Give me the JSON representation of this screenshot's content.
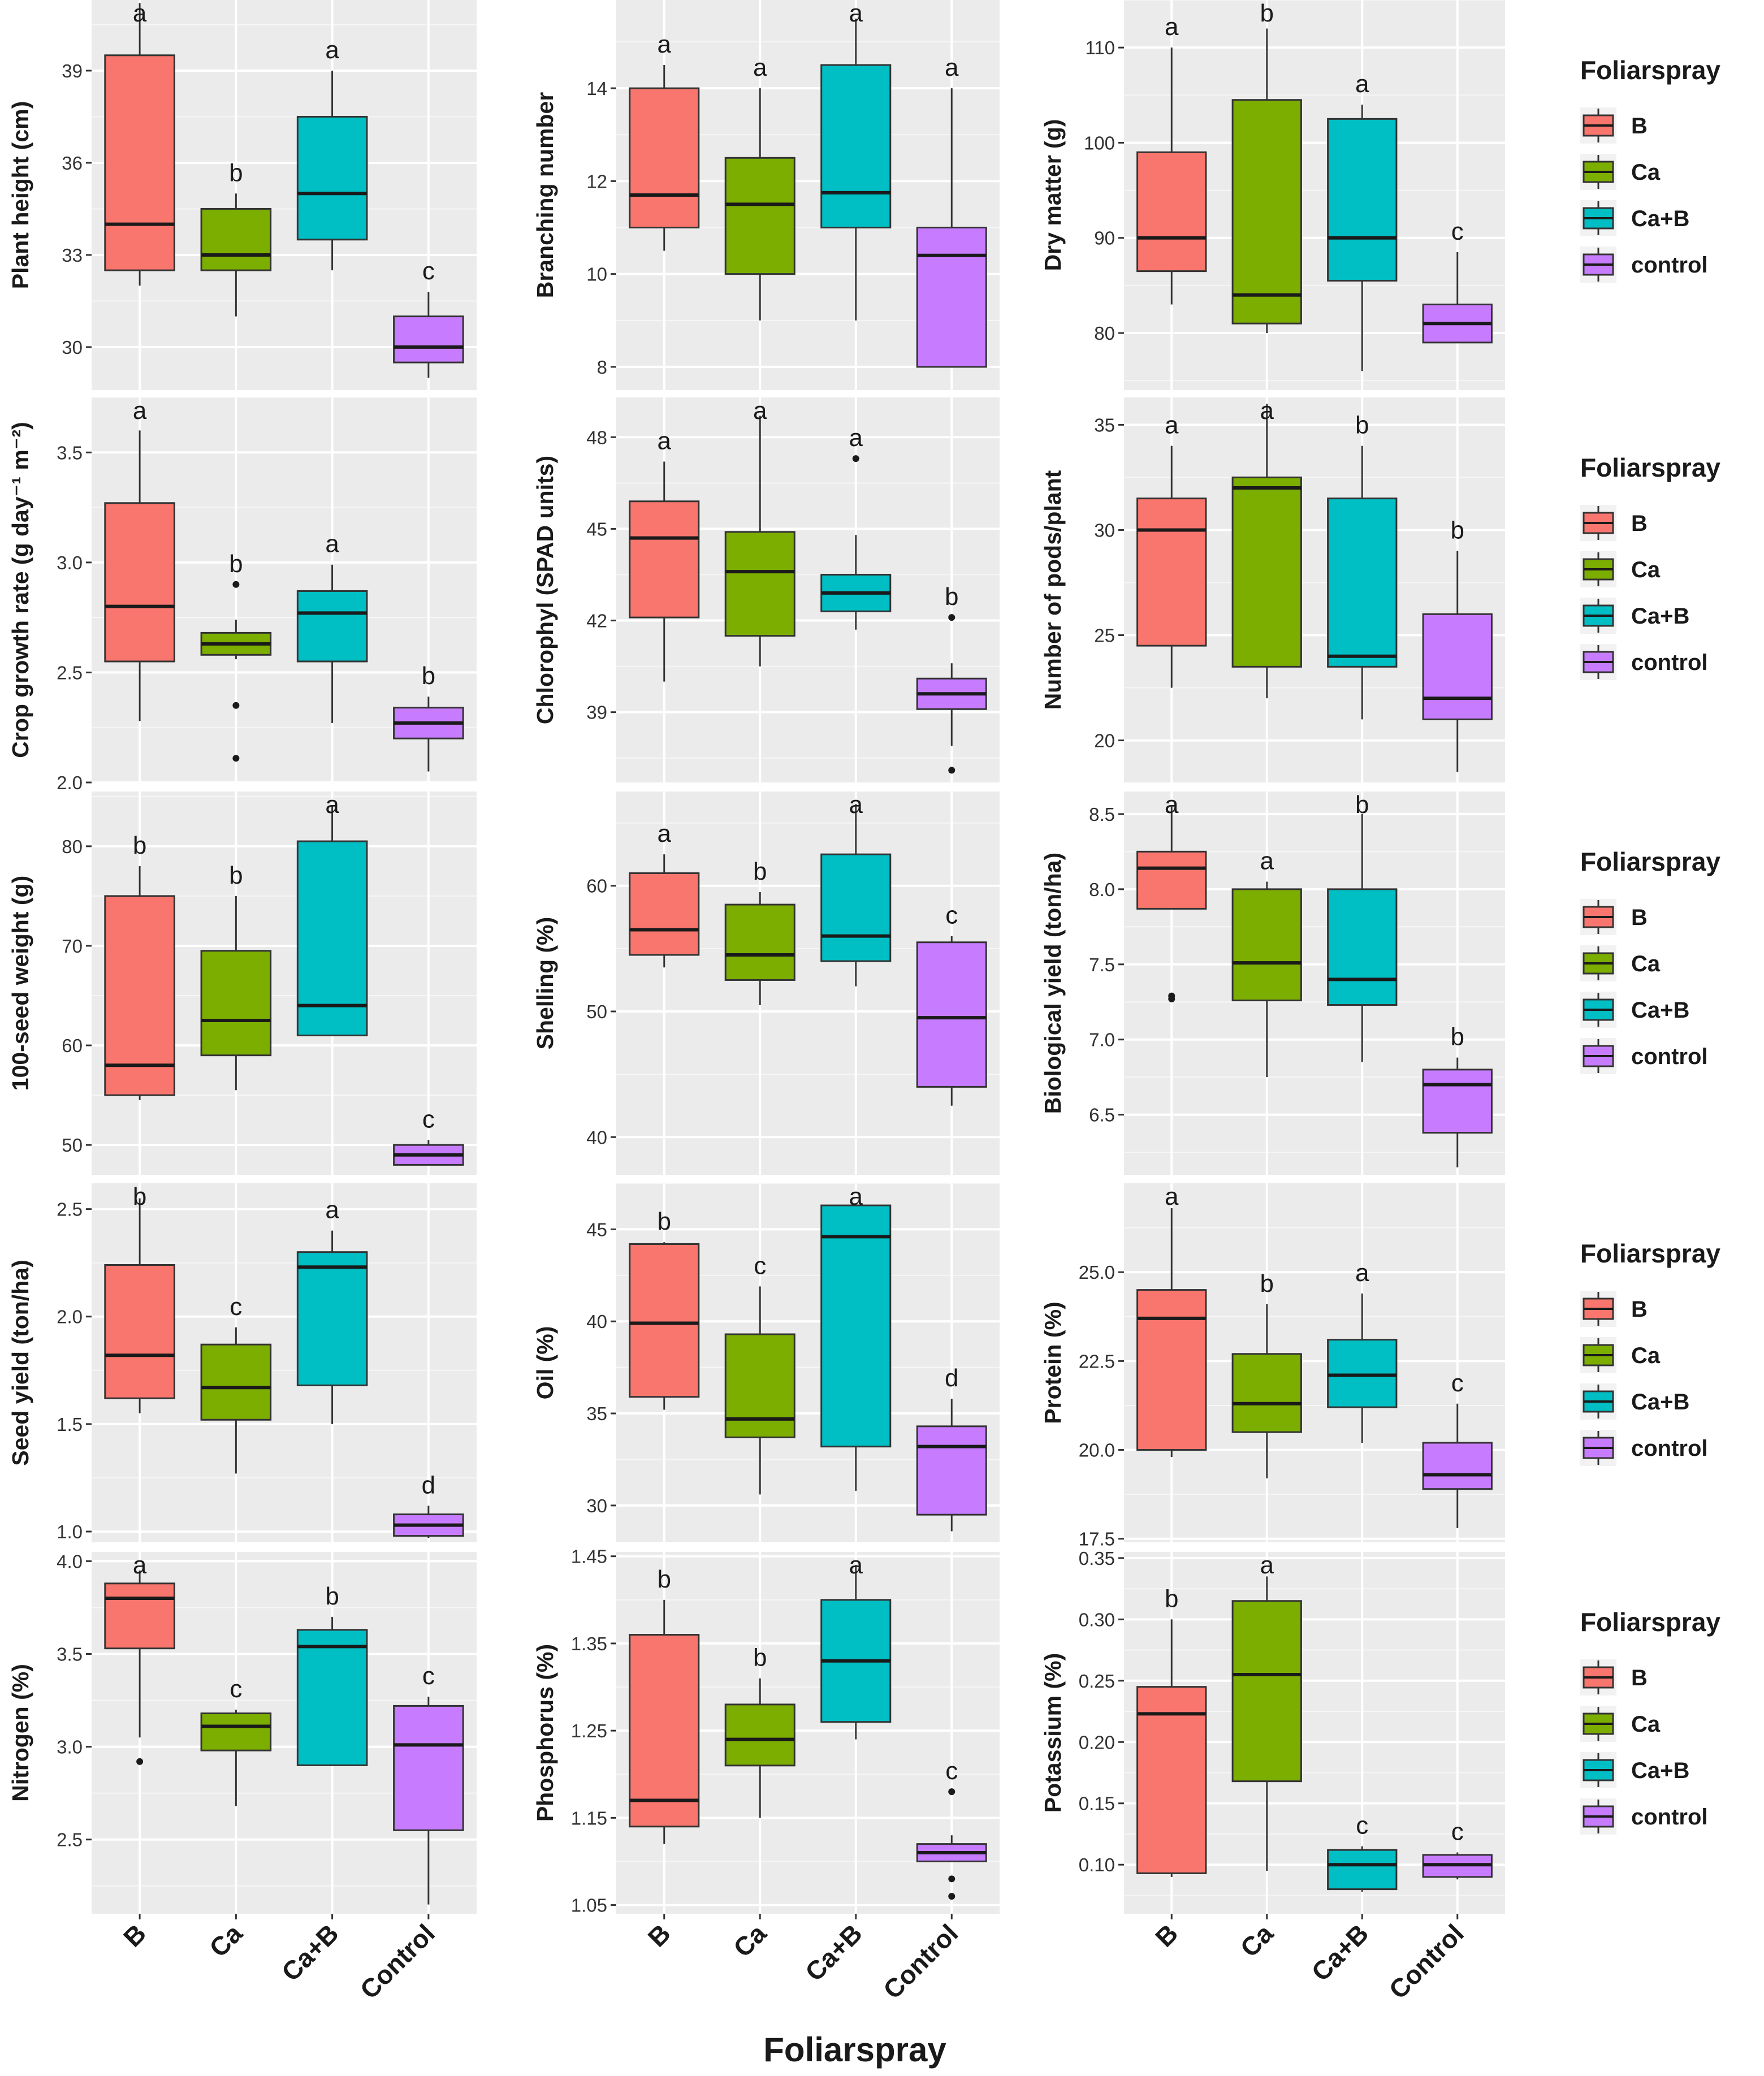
{
  "figure": {
    "x_title": "Foliarspray",
    "x_categories": [
      "B",
      "Ca",
      "Ca+B",
      "Control"
    ],
    "legend": {
      "title": "Foliarspray",
      "items": [
        {
          "label": "B",
          "color": "#F8766D"
        },
        {
          "label": "Ca",
          "color": "#7CAE00"
        },
        {
          "label": "Ca+B",
          "color": "#00BFC4"
        },
        {
          "label": "control",
          "color": "#C77CFF"
        }
      ]
    }
  },
  "chart_data": [
    {
      "type": "boxplot",
      "ylabel": "Plant height (cm)",
      "ylim": [
        28.6,
        41.3
      ],
      "yticks": [
        30,
        33,
        36,
        39
      ],
      "yticklabels": [
        "30",
        "33",
        "36",
        "39"
      ],
      "groups": [
        {
          "category": "B",
          "whisker_low": 32,
          "q1": 32.5,
          "median": 34,
          "q3": 39.5,
          "whisker_high": 41.2,
          "letter": "a",
          "outliers": []
        },
        {
          "category": "Ca",
          "whisker_low": 31,
          "q1": 32.5,
          "median": 33,
          "q3": 34.5,
          "whisker_high": 35,
          "letter": "b",
          "outliers": []
        },
        {
          "category": "Ca+B",
          "whisker_low": 32.5,
          "q1": 33.5,
          "median": 35,
          "q3": 37.5,
          "whisker_high": 39,
          "letter": "a",
          "outliers": []
        },
        {
          "category": "Control",
          "whisker_low": 29,
          "q1": 29.5,
          "median": 30,
          "q3": 31,
          "whisker_high": 31.8,
          "letter": "c",
          "outliers": []
        }
      ]
    },
    {
      "type": "boxplot",
      "ylabel": "Branching number",
      "ylim": [
        7.5,
        15.9
      ],
      "yticks": [
        8,
        10,
        12,
        14
      ],
      "yticklabels": [
        "8",
        "10",
        "12",
        "14"
      ],
      "groups": [
        {
          "category": "B",
          "whisker_low": 10.5,
          "q1": 11,
          "median": 11.7,
          "q3": 14,
          "whisker_high": 14.5,
          "letter": "a",
          "outliers": []
        },
        {
          "category": "Ca",
          "whisker_low": 9,
          "q1": 10,
          "median": 11.5,
          "q3": 12.5,
          "whisker_high": 14,
          "letter": "a",
          "outliers": []
        },
        {
          "category": "Ca+B",
          "whisker_low": 9,
          "q1": 11,
          "median": 11.75,
          "q3": 14.5,
          "whisker_high": 15.5,
          "letter": "a",
          "outliers": []
        },
        {
          "category": "Control",
          "whisker_low": 8,
          "q1": 8,
          "median": 10.4,
          "q3": 11,
          "whisker_high": 14,
          "letter": "a",
          "outliers": []
        }
      ]
    },
    {
      "type": "boxplot",
      "ylabel": "Dry matter (g)",
      "ylim": [
        74,
        115
      ],
      "yticks": [
        80,
        90,
        100,
        110
      ],
      "yticklabels": [
        "80",
        "90",
        "100",
        "110"
      ],
      "groups": [
        {
          "category": "B",
          "whisker_low": 83,
          "q1": 86.5,
          "median": 90,
          "q3": 99,
          "whisker_high": 110,
          "letter": "a",
          "outliers": []
        },
        {
          "category": "Ca",
          "whisker_low": 80,
          "q1": 81,
          "median": 84,
          "q3": 104.5,
          "whisker_high": 112,
          "letter": "b",
          "outliers": []
        },
        {
          "category": "Ca+B",
          "whisker_low": 76,
          "q1": 85.5,
          "median": 90,
          "q3": 102.5,
          "whisker_high": 104,
          "letter": "a",
          "outliers": []
        },
        {
          "category": "Control",
          "whisker_low": 79,
          "q1": 79,
          "median": 81,
          "q3": 83,
          "whisker_high": 88.5,
          "letter": "c",
          "outliers": []
        }
      ]
    },
    {
      "type": "boxplot",
      "ylabel": "Crop growth rate (g day⁻¹ m⁻²)",
      "ylim": [
        2.0,
        3.75
      ],
      "yticks": [
        2.0,
        2.5,
        3.0,
        3.5
      ],
      "yticklabels": [
        "2.0",
        "2.5",
        "3.0",
        "3.5"
      ],
      "groups": [
        {
          "category": "B",
          "whisker_low": 2.28,
          "q1": 2.55,
          "median": 2.8,
          "q3": 3.27,
          "whisker_high": 3.6,
          "letter": "a",
          "outliers": []
        },
        {
          "category": "Ca",
          "whisker_low": 2.56,
          "q1": 2.58,
          "median": 2.63,
          "q3": 2.68,
          "whisker_high": 2.74,
          "letter": "b",
          "outliers": [
            2.9,
            2.35,
            2.11
          ]
        },
        {
          "category": "Ca+B",
          "whisker_low": 2.27,
          "q1": 2.55,
          "median": 2.77,
          "q3": 2.87,
          "whisker_high": 2.99,
          "letter": "a",
          "outliers": []
        },
        {
          "category": "Control",
          "whisker_low": 2.05,
          "q1": 2.2,
          "median": 2.27,
          "q3": 2.34,
          "whisker_high": 2.39,
          "letter": "b",
          "outliers": []
        }
      ]
    },
    {
      "type": "boxplot",
      "ylabel": "Chlorophyl (SPAD units)",
      "ylim": [
        36.7,
        49.3
      ],
      "yticks": [
        39,
        42,
        45,
        48
      ],
      "yticklabels": [
        "39",
        "42",
        "45",
        "48"
      ],
      "groups": [
        {
          "category": "B",
          "whisker_low": 40,
          "q1": 42.1,
          "median": 44.7,
          "q3": 45.9,
          "whisker_high": 47.2,
          "letter": "a",
          "outliers": []
        },
        {
          "category": "Ca",
          "whisker_low": 40.5,
          "q1": 41.5,
          "median": 43.6,
          "q3": 44.9,
          "whisker_high": 48.7,
          "letter": "a",
          "outliers": []
        },
        {
          "category": "Ca+B",
          "whisker_low": 41.7,
          "q1": 42.3,
          "median": 42.9,
          "q3": 43.5,
          "whisker_high": 44.8,
          "letter": "a",
          "outliers": [
            47.3
          ]
        },
        {
          "category": "Control",
          "whisker_low": 37.9,
          "q1": 39.1,
          "median": 39.6,
          "q3": 40.1,
          "whisker_high": 40.6,
          "letter": "b",
          "outliers": [
            37.1,
            42.1
          ]
        }
      ]
    },
    {
      "type": "boxplot",
      "ylabel": "Number of pods/plant",
      "ylim": [
        18,
        36.3
      ],
      "yticks": [
        20,
        25,
        30,
        35
      ],
      "yticklabels": [
        "20",
        "25",
        "30",
        "35"
      ],
      "groups": [
        {
          "category": "B",
          "whisker_low": 22.5,
          "q1": 24.5,
          "median": 30,
          "q3": 31.5,
          "whisker_high": 34,
          "letter": "a",
          "outliers": []
        },
        {
          "category": "Ca",
          "whisker_low": 22,
          "q1": 23.5,
          "median": 32,
          "q3": 32.5,
          "whisker_high": 36,
          "letter": "a",
          "outliers": []
        },
        {
          "category": "Ca+B",
          "whisker_low": 21,
          "q1": 23.5,
          "median": 24,
          "q3": 31.5,
          "whisker_high": 34,
          "letter": "b",
          "outliers": []
        },
        {
          "category": "Control",
          "whisker_low": 18.5,
          "q1": 21,
          "median": 22,
          "q3": 26,
          "whisker_high": 29,
          "letter": "b",
          "outliers": []
        }
      ]
    },
    {
      "type": "boxplot",
      "ylabel": "100-seed weight (g)",
      "ylim": [
        47,
        85.5
      ],
      "yticks": [
        50,
        60,
        70,
        80
      ],
      "yticklabels": [
        "50",
        "60",
        "70",
        "80"
      ],
      "groups": [
        {
          "category": "B",
          "whisker_low": 54.5,
          "q1": 55,
          "median": 58,
          "q3": 75,
          "whisker_high": 78,
          "letter": "b",
          "outliers": []
        },
        {
          "category": "Ca",
          "whisker_low": 55.5,
          "q1": 59,
          "median": 62.5,
          "q3": 69.5,
          "whisker_high": 75,
          "letter": "b",
          "outliers": []
        },
        {
          "category": "Ca+B",
          "whisker_low": 61,
          "q1": 61,
          "median": 64,
          "q3": 80.5,
          "whisker_high": 84,
          "letter": "a",
          "outliers": []
        },
        {
          "category": "Control",
          "whisker_low": 48,
          "q1": 48,
          "median": 49,
          "q3": 50,
          "whisker_high": 50.5,
          "letter": "c",
          "outliers": []
        }
      ]
    },
    {
      "type": "boxplot",
      "ylabel": "Shelling (%)",
      "ylim": [
        37,
        67.5
      ],
      "yticks": [
        40,
        50,
        60
      ],
      "yticklabels": [
        "40",
        "50",
        "60"
      ],
      "groups": [
        {
          "category": "B",
          "whisker_low": 53.5,
          "q1": 54.5,
          "median": 56.5,
          "q3": 61,
          "whisker_high": 62.5,
          "letter": "a",
          "outliers": []
        },
        {
          "category": "Ca",
          "whisker_low": 50.5,
          "q1": 52.5,
          "median": 54.5,
          "q3": 58.5,
          "whisker_high": 59.5,
          "letter": "b",
          "outliers": []
        },
        {
          "category": "Ca+B",
          "whisker_low": 52,
          "q1": 54,
          "median": 56,
          "q3": 62.5,
          "whisker_high": 66.5,
          "letter": "a",
          "outliers": []
        },
        {
          "category": "Control",
          "whisker_low": 42.5,
          "q1": 44,
          "median": 49.5,
          "q3": 55.5,
          "whisker_high": 56,
          "letter": "c",
          "outliers": []
        }
      ]
    },
    {
      "type": "boxplot",
      "ylabel": "Biological yield (ton/ha)",
      "ylim": [
        6.1,
        8.65
      ],
      "yticks": [
        6.5,
        7.0,
        7.5,
        8.0,
        8.5
      ],
      "yticklabels": [
        "6.5",
        "7.0",
        "7.5",
        "8.0",
        "8.5"
      ],
      "groups": [
        {
          "category": "B",
          "whisker_low": 7.87,
          "q1": 7.87,
          "median": 8.14,
          "q3": 8.25,
          "whisker_high": 8.55,
          "letter": "a",
          "outliers": [
            7.27,
            7.29
          ]
        },
        {
          "category": "Ca",
          "whisker_low": 6.75,
          "q1": 7.26,
          "median": 7.51,
          "q3": 8.0,
          "whisker_high": 8.05,
          "letter": "a",
          "outliers": []
        },
        {
          "category": "Ca+B",
          "whisker_low": 6.85,
          "q1": 7.23,
          "median": 7.4,
          "q3": 8.0,
          "whisker_high": 8.5,
          "letter": "b",
          "outliers": []
        },
        {
          "category": "Control",
          "whisker_low": 6.15,
          "q1": 6.38,
          "median": 6.7,
          "q3": 6.8,
          "whisker_high": 6.88,
          "letter": "b",
          "outliers": []
        }
      ]
    },
    {
      "type": "boxplot",
      "ylabel": "Seed yield (ton/ha)",
      "ylim": [
        0.95,
        2.62
      ],
      "yticks": [
        1.0,
        1.5,
        2.0,
        2.5
      ],
      "yticklabels": [
        "1.0",
        "1.5",
        "2.0",
        "2.5"
      ],
      "groups": [
        {
          "category": "B",
          "whisker_low": 1.55,
          "q1": 1.62,
          "median": 1.82,
          "q3": 2.24,
          "whisker_high": 2.55,
          "letter": "b",
          "outliers": []
        },
        {
          "category": "Ca",
          "whisker_low": 1.27,
          "q1": 1.52,
          "median": 1.67,
          "q3": 1.87,
          "whisker_high": 1.95,
          "letter": "c",
          "outliers": []
        },
        {
          "category": "Ca+B",
          "whisker_low": 1.5,
          "q1": 1.68,
          "median": 2.23,
          "q3": 2.3,
          "whisker_high": 2.4,
          "letter": "a",
          "outliers": []
        },
        {
          "category": "Control",
          "whisker_low": 0.97,
          "q1": 0.98,
          "median": 1.03,
          "q3": 1.08,
          "whisker_high": 1.12,
          "letter": "d",
          "outliers": []
        }
      ]
    },
    {
      "type": "boxplot",
      "ylabel": "Oil (%)",
      "ylim": [
        28,
        47.5
      ],
      "yticks": [
        30,
        35,
        40,
        45
      ],
      "yticklabels": [
        "30",
        "35",
        "40",
        "45"
      ],
      "groups": [
        {
          "category": "B",
          "whisker_low": 35.2,
          "q1": 35.9,
          "median": 39.9,
          "q3": 44.2,
          "whisker_high": 44.3,
          "letter": "b",
          "outliers": []
        },
        {
          "category": "Ca",
          "whisker_low": 30.6,
          "q1": 33.7,
          "median": 34.7,
          "q3": 39.3,
          "whisker_high": 41.9,
          "letter": "c",
          "outliers": []
        },
        {
          "category": "Ca+B",
          "whisker_low": 30.8,
          "q1": 33.2,
          "median": 44.6,
          "q3": 46.3,
          "whisker_high": 46.4,
          "letter": "a",
          "outliers": []
        },
        {
          "category": "Control",
          "whisker_low": 28.6,
          "q1": 29.5,
          "median": 33.2,
          "q3": 34.3,
          "whisker_high": 35.8,
          "letter": "d",
          "outliers": []
        }
      ]
    },
    {
      "type": "boxplot",
      "ylabel": "Protein (%)",
      "ylim": [
        17.4,
        27.5
      ],
      "yticks": [
        17.5,
        20.0,
        22.5,
        25.0
      ],
      "yticklabels": [
        "17.5",
        "20.0",
        "22.5",
        "25.0"
      ],
      "groups": [
        {
          "category": "B",
          "whisker_low": 19.8,
          "q1": 20.0,
          "median": 23.7,
          "q3": 24.5,
          "whisker_high": 26.8,
          "letter": "a",
          "outliers": []
        },
        {
          "category": "Ca",
          "whisker_low": 19.2,
          "q1": 20.5,
          "median": 21.3,
          "q3": 22.7,
          "whisker_high": 24.1,
          "letter": "b",
          "outliers": []
        },
        {
          "category": "Ca+B",
          "whisker_low": 20.2,
          "q1": 21.2,
          "median": 22.1,
          "q3": 23.1,
          "whisker_high": 24.4,
          "letter": "a",
          "outliers": []
        },
        {
          "category": "Control",
          "whisker_low": 17.8,
          "q1": 18.9,
          "median": 19.3,
          "q3": 20.2,
          "whisker_high": 21.3,
          "letter": "c",
          "outliers": []
        }
      ]
    },
    {
      "type": "boxplot",
      "ylabel": "Nitrogen (%)",
      "ylim": [
        2.1,
        4.05
      ],
      "yticks": [
        2.5,
        3.0,
        3.5,
        4.0
      ],
      "yticklabels": [
        "2.5",
        "3.0",
        "3.5",
        "4.0"
      ],
      "groups": [
        {
          "category": "B",
          "whisker_low": 3.05,
          "q1": 3.53,
          "median": 3.8,
          "q3": 3.88,
          "whisker_high": 3.95,
          "letter": "a",
          "outliers": [
            2.92
          ]
        },
        {
          "category": "Ca",
          "whisker_low": 2.68,
          "q1": 2.98,
          "median": 3.11,
          "q3": 3.18,
          "whisker_high": 3.2,
          "letter": "c",
          "outliers": []
        },
        {
          "category": "Ca+B",
          "whisker_low": 2.9,
          "q1": 2.9,
          "median": 3.54,
          "q3": 3.63,
          "whisker_high": 3.7,
          "letter": "b",
          "outliers": []
        },
        {
          "category": "Control",
          "whisker_low": 2.15,
          "q1": 2.55,
          "median": 3.01,
          "q3": 3.22,
          "whisker_high": 3.27,
          "letter": "c",
          "outliers": []
        }
      ]
    },
    {
      "type": "boxplot",
      "ylabel": "Phosphorus (%)",
      "ylim": [
        1.04,
        1.455
      ],
      "yticks": [
        1.05,
        1.15,
        1.25,
        1.35,
        1.45
      ],
      "yticklabels": [
        "1.05",
        "1.15",
        "1.25",
        "1.35",
        "1.45"
      ],
      "groups": [
        {
          "category": "B",
          "whisker_low": 1.12,
          "q1": 1.14,
          "median": 1.17,
          "q3": 1.36,
          "whisker_high": 1.4,
          "letter": "b",
          "outliers": []
        },
        {
          "category": "Ca",
          "whisker_low": 1.15,
          "q1": 1.21,
          "median": 1.24,
          "q3": 1.28,
          "whisker_high": 1.31,
          "letter": "b",
          "outliers": []
        },
        {
          "category": "Ca+B",
          "whisker_low": 1.24,
          "q1": 1.26,
          "median": 1.33,
          "q3": 1.4,
          "whisker_high": 1.44,
          "letter": "a",
          "outliers": []
        },
        {
          "category": "Control",
          "whisker_low": 1.1,
          "q1": 1.1,
          "median": 1.11,
          "q3": 1.12,
          "whisker_high": 1.13,
          "letter": "c",
          "outliers": [
            1.18,
            1.08,
            1.06
          ]
        }
      ]
    },
    {
      "type": "boxplot",
      "ylabel": "Potassium (%)",
      "ylim": [
        0.06,
        0.355
      ],
      "yticks": [
        0.1,
        0.15,
        0.2,
        0.25,
        0.3,
        0.35
      ],
      "yticklabels": [
        "0.10",
        "0.15",
        "0.20",
        "0.25",
        "0.30",
        "0.35"
      ],
      "groups": [
        {
          "category": "B",
          "whisker_low": 0.09,
          "q1": 0.093,
          "median": 0.223,
          "q3": 0.245,
          "whisker_high": 0.3,
          "letter": "b",
          "outliers": []
        },
        {
          "category": "Ca",
          "whisker_low": 0.095,
          "q1": 0.168,
          "median": 0.255,
          "q3": 0.315,
          "whisker_high": 0.335,
          "letter": "a",
          "outliers": []
        },
        {
          "category": "Ca+B",
          "whisker_low": 0.078,
          "q1": 0.08,
          "median": 0.1,
          "q3": 0.112,
          "whisker_high": 0.115,
          "letter": "c",
          "outliers": []
        },
        {
          "category": "Control",
          "whisker_low": 0.088,
          "q1": 0.09,
          "median": 0.1,
          "q3": 0.108,
          "whisker_high": 0.11,
          "letter": "c",
          "outliers": []
        }
      ]
    }
  ]
}
